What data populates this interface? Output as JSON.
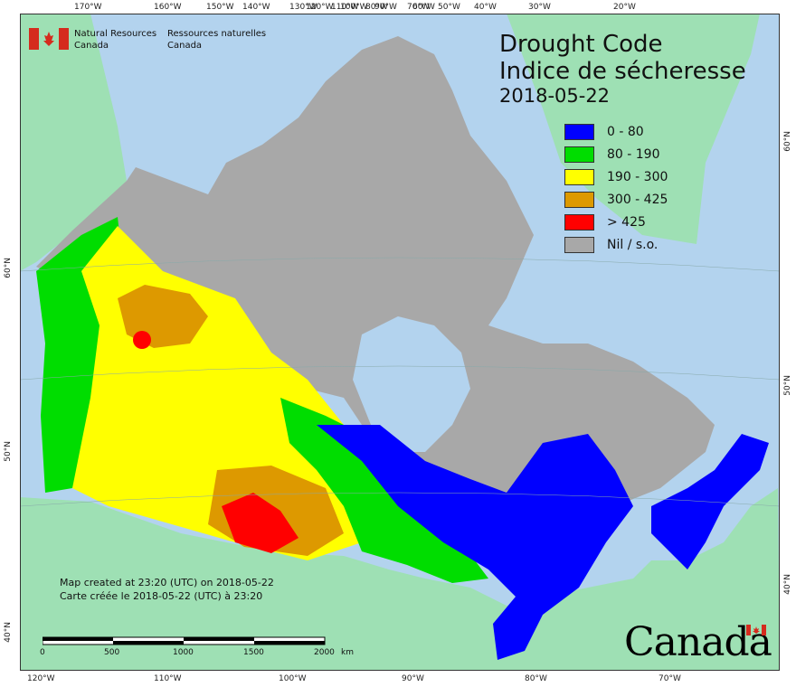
{
  "title_en": "Drought Code",
  "title_fr": "Indice de sécheresse",
  "date": "2018-05-22",
  "agency": {
    "en_line1": "Natural Resources",
    "en_line2": "Canada",
    "fr_line1": "Ressources naturelles",
    "fr_line2": "Canada"
  },
  "legend": [
    {
      "label": "0 - 80",
      "color": "#0000ff"
    },
    {
      "label": "80 - 190",
      "color": "#00dd00"
    },
    {
      "label": "190 - 300",
      "color": "#ffff00"
    },
    {
      "label": "300 - 425",
      "color": "#dd9900"
    },
    {
      "label": "> 425",
      "color": "#ff0000"
    },
    {
      "label": "Nil / s.o.",
      "color": "#a8a8a8"
    }
  ],
  "credit": {
    "en": "Map created at 23:20 (UTC) on 2018-05-22",
    "fr": "Carte créée le 2018-05-22 (UTC) à 23:20"
  },
  "scale_bar": {
    "ticks": [
      "0",
      "500",
      "1000",
      "1500",
      "2000"
    ],
    "unit": "km"
  },
  "wordmark": "Canada",
  "graticule": {
    "top": [
      "170°W",
      "160°W",
      "150°W",
      "140°W",
      "130°W",
      "120°W",
      "110°W",
      "100°W",
      "90°W",
      "80°W",
      "70°W",
      "60°W",
      "50°W",
      "40°W",
      "30°W",
      "20°W"
    ],
    "bottom": [
      "120°W",
      "110°W",
      "100°W",
      "90°W",
      "80°W",
      "70°W"
    ],
    "left": [
      "60°N",
      "50°N",
      "40°N"
    ],
    "right": [
      "60°N",
      "50°N",
      "40°N"
    ]
  },
  "colors": {
    "ocean": "#b3d3ee",
    "foreign_land": "#9ee0b4",
    "nil": "#a8a8a8"
  }
}
